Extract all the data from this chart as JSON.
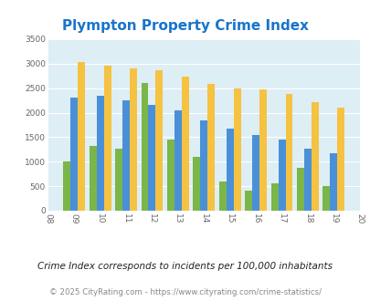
{
  "title": "Plympton Property Crime Index",
  "title_color": "#1874cd",
  "years": [
    2009,
    2010,
    2011,
    2012,
    2013,
    2014,
    2015,
    2016,
    2017,
    2018,
    2019
  ],
  "plympton": [
    1000,
    1320,
    1260,
    2610,
    1460,
    1090,
    590,
    410,
    555,
    880,
    505
  ],
  "massachusetts": [
    2310,
    2350,
    2260,
    2150,
    2050,
    1840,
    1680,
    1550,
    1445,
    1260,
    1175
  ],
  "national": [
    3040,
    2960,
    2910,
    2860,
    2730,
    2595,
    2500,
    2470,
    2380,
    2215,
    2110
  ],
  "plympton_color": "#7ab648",
  "massachusetts_color": "#4a90d9",
  "national_color": "#f5c242",
  "bg_color": "#ddeef5",
  "ylim": [
    0,
    3500
  ],
  "ylabel_ticks": [
    0,
    500,
    1000,
    1500,
    2000,
    2500,
    3000,
    3500
  ],
  "xlim_min": 2008,
  "xlim_max": 2020,
  "note": "Crime Index corresponds to incidents per 100,000 inhabitants",
  "copyright": "© 2025 CityRating.com - https://www.cityrating.com/crime-statistics/",
  "note_color": "#222222",
  "copyright_color": "#888888",
  "bar_width": 0.28
}
